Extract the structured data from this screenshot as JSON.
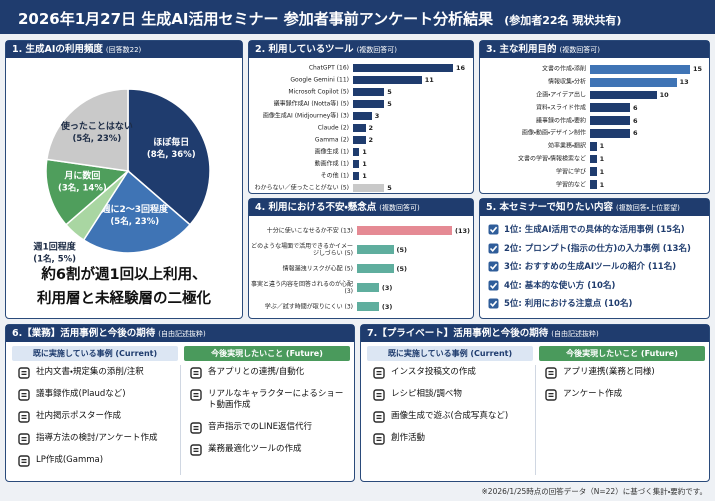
{
  "header": {
    "title": "2026年1月27日 生成AI活用セミナー 参加者事前アンケート分析結果",
    "subtitle": "(参加者22名 現状共有)"
  },
  "chart_data": [
    {
      "type": "pie",
      "title": "1. 生成AIの利用頻度",
      "subtitle": "(回答数22)",
      "categories": [
        "ほぼ毎日",
        "週に2〜3回程度",
        "週1回程度",
        "月に数回",
        "使ったことはない"
      ],
      "values": [
        8,
        5,
        1,
        3,
        5
      ],
      "value_labels": [
        "(8名, 36%)",
        "(5名, 23%)",
        "(1名, 5%)",
        "(3名, 14%)",
        "(5名, 23%)"
      ],
      "colors": [
        "#1f3c6e",
        "#3f74b5",
        "#a9d6a2",
        "#4f9e5c",
        "#c9c9c9"
      ],
      "annotations": [
        "約6割が週1回以上利用、",
        "利用層と未経験層の二極化"
      ]
    },
    {
      "type": "barh",
      "title": "2. 利用しているツール",
      "subtitle": "(複数回答可)",
      "categories": [
        "ChatGPT (16)",
        "Google Gemini (11)",
        "Microsoft Copilot (5)",
        "議事録作成AI (Notta等) (5)",
        "画像生成AI (Midjourney等) (3)",
        "Claude (2)",
        "Gamma (2)",
        "画像生成 (1)",
        "動画作成 (1)",
        "その他 (1)",
        "わからない／使ったことがない (5)"
      ],
      "values": [
        16,
        11,
        5,
        5,
        3,
        2,
        2,
        1,
        1,
        1,
        5
      ],
      "colors": [
        "#1f3c6e",
        "#1f3c6e",
        "#1f3c6e",
        "#1f3c6e",
        "#1f3c6e",
        "#1f3c6e",
        "#1f3c6e",
        "#1f3c6e",
        "#1f3c6e",
        "#1f3c6e",
        "#c9c9c9"
      ],
      "xlim": [
        0,
        16
      ]
    },
    {
      "type": "barh",
      "title": "3. 主な利用目的",
      "subtitle": "(複数回答可)",
      "categories": [
        "文書の作成・添削",
        "情報収集・分析",
        "企画・アイデア出し",
        "資料・スライド作成",
        "議事録の作成・要約",
        "画像・動画・デザイン制作",
        "効率業務・翻訳",
        "文書の学習・情報検索など",
        "学習に学び",
        "学習的など"
      ],
      "values": [
        15,
        13,
        10,
        6,
        6,
        6,
        1,
        1,
        1,
        1
      ],
      "colors": [
        "#3f74b5",
        "#3f74b5",
        "#1f3c6e",
        "#1f3c6e",
        "#1f3c6e",
        "#1f3c6e",
        "#1f3c6e",
        "#1f3c6e",
        "#1f3c6e",
        "#1f3c6e"
      ],
      "xlim": [
        0,
        15
      ]
    },
    {
      "type": "barh",
      "title": "4. 利用における不安・懸念点",
      "subtitle": "(複数回答可)",
      "categories": [
        "十分に使いこなせるか不安 (13)",
        "どのような場面で活用できるかイメージしづらい (5)",
        "情報漏洩リスクが心配 (5)",
        "事実と違う内容を回答されるのが心配 (3)",
        "学ぶ／試す時間が取りにくい (3)"
      ],
      "values": [
        13,
        5,
        5,
        3,
        3
      ],
      "value_labels": [
        "(13)",
        "(5)",
        "(5)",
        "(3)",
        "(3)"
      ],
      "colors": [
        "#e58a94",
        "#5fae9e",
        "#5fae9e",
        "#5fae9e",
        "#5fae9e"
      ],
      "xlim": [
        0,
        13
      ]
    }
  ],
  "panels": {
    "wants": {
      "title": "5. 本セミナーで知りたい内容",
      "subtitle": "(複数回答・上位要望)",
      "items": [
        "1位: 生成AI活用での具体的な活用事例 (15名)",
        "2位: プロンプト(指示の仕方)の入力事例 (13名)",
        "3位: おすすめの生成AIツールの紹介 (11名)",
        "4位: 基本的な使い方 (10名)",
        "5位: 利用における注意点 (10名)"
      ]
    },
    "business": {
      "title": "6.【業務】活用事例と今後の期待",
      "subtitle": "(自由記述抜粋)",
      "current": {
        "heading": "既に実施している事例 (Current)",
        "items": [
          "社内文書・規定集の添削/注釈",
          "議事録作成(Plaudなど)",
          "社内掲示ポスター作成",
          "指導方法の検討/アンケート作成",
          "LP作成(Gamma)"
        ]
      },
      "future": {
        "heading": "今後実現したいこと (Future)",
        "items": [
          "各アプリとの連携/自動化",
          "リアルなキャラクターによるショート動画作成",
          "音声指示でのLINE返信代行",
          "業務最適化ツールの作成"
        ]
      }
    },
    "private": {
      "title": "7.【プライベート】活用事例と今後の期待",
      "subtitle": "(自由記述抜粋)",
      "current": {
        "heading": "既に実施している事例 (Current)",
        "items": [
          "インスタ投稿文の作成",
          "レシピ相談/調べ物",
          "画像生成で遊ぶ(合成写真など)",
          "創作活動"
        ]
      },
      "future": {
        "heading": "今後実現したいこと (Future)",
        "items": [
          "アプリ連携(業務と同様)",
          "アンケート作成"
        ]
      }
    }
  },
  "footnote": "※2026/1/25時点の回答データ（N=22）に基づく集計・要約です。"
}
